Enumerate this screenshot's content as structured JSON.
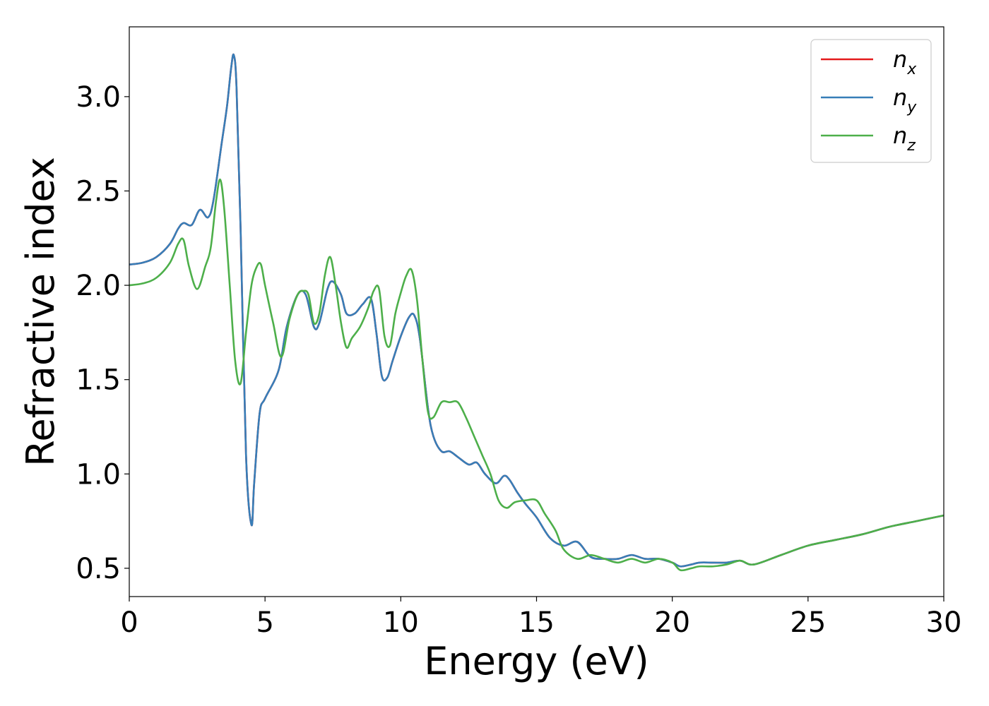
{
  "chart_data": {
    "type": "line",
    "xlabel": "Energy (eV)",
    "ylabel": "Refractive index",
    "xlim": [
      0,
      30
    ],
    "ylim": [
      0.35,
      3.37
    ],
    "xticks": [
      0,
      5,
      10,
      15,
      20,
      25,
      30
    ],
    "xtick_labels": [
      "0",
      "5",
      "10",
      "15",
      "20",
      "25",
      "30"
    ],
    "yticks": [
      0.5,
      1.0,
      1.5,
      2.0,
      2.5,
      3.0
    ],
    "ytick_labels": [
      "0.5",
      "1.0",
      "1.5",
      "2.0",
      "2.5",
      "3.0"
    ],
    "grid": false,
    "legend_position": "top-right",
    "series": [
      {
        "name": "n_x",
        "label_base": "n",
        "label_sub": "x",
        "color": "#e41a1c",
        "x": [
          0,
          0.5,
          1.0,
          1.5,
          1.8,
          2.0,
          2.3,
          2.6,
          2.9,
          3.1,
          3.4,
          3.6,
          3.75,
          3.85,
          3.95,
          4.1,
          4.3,
          4.5,
          4.6,
          4.8,
          5.0,
          5.5,
          5.8,
          6.2,
          6.5,
          6.8,
          7.0,
          7.3,
          7.5,
          7.8,
          8.0,
          8.3,
          8.6,
          8.9,
          9.1,
          9.3,
          9.5,
          9.7,
          10.0,
          10.3,
          10.5,
          10.7,
          11.0,
          11.2,
          11.5,
          11.8,
          12.1,
          12.5,
          12.8,
          13.1,
          13.5,
          13.8,
          14.0,
          14.3,
          14.6,
          15.0,
          15.5,
          16.0,
          16.5,
          17.0,
          17.5,
          18.0,
          18.5,
          19.0,
          19.5,
          20.0,
          20.3,
          20.7,
          21.0,
          21.5,
          22.0,
          22.5,
          23.0,
          24.0,
          25.0,
          26.0,
          27.0,
          28.0,
          29.0,
          30.0
        ],
        "values": [
          2.11,
          2.12,
          2.15,
          2.22,
          2.3,
          2.33,
          2.32,
          2.4,
          2.36,
          2.45,
          2.75,
          2.95,
          3.15,
          3.22,
          3.05,
          2.3,
          1.1,
          0.73,
          0.95,
          1.32,
          1.4,
          1.55,
          1.78,
          1.95,
          1.95,
          1.78,
          1.8,
          1.98,
          2.02,
          1.95,
          1.85,
          1.85,
          1.9,
          1.93,
          1.75,
          1.52,
          1.51,
          1.6,
          1.73,
          1.83,
          1.84,
          1.72,
          1.35,
          1.2,
          1.12,
          1.12,
          1.09,
          1.05,
          1.06,
          1.0,
          0.95,
          0.99,
          0.97,
          0.9,
          0.84,
          0.77,
          0.66,
          0.62,
          0.64,
          0.56,
          0.55,
          0.55,
          0.57,
          0.55,
          0.55,
          0.53,
          0.51,
          0.52,
          0.53,
          0.53,
          0.53,
          0.54,
          0.52,
          0.57,
          0.62,
          0.65,
          0.68,
          0.72,
          0.75,
          0.78
        ]
      },
      {
        "name": "n_y",
        "label_base": "n",
        "label_sub": "y",
        "color": "#377eb8",
        "x": [
          0,
          0.5,
          1.0,
          1.5,
          1.8,
          2.0,
          2.3,
          2.6,
          2.9,
          3.1,
          3.4,
          3.6,
          3.75,
          3.85,
          3.95,
          4.1,
          4.3,
          4.5,
          4.6,
          4.8,
          5.0,
          5.5,
          5.8,
          6.2,
          6.5,
          6.8,
          7.0,
          7.3,
          7.5,
          7.8,
          8.0,
          8.3,
          8.6,
          8.9,
          9.1,
          9.3,
          9.5,
          9.7,
          10.0,
          10.3,
          10.5,
          10.7,
          11.0,
          11.2,
          11.5,
          11.8,
          12.1,
          12.5,
          12.8,
          13.1,
          13.5,
          13.8,
          14.0,
          14.3,
          14.6,
          15.0,
          15.5,
          16.0,
          16.5,
          17.0,
          17.5,
          18.0,
          18.5,
          19.0,
          19.5,
          20.0,
          20.3,
          20.7,
          21.0,
          21.5,
          22.0,
          22.5,
          23.0,
          24.0,
          25.0,
          26.0,
          27.0,
          28.0,
          29.0,
          30.0
        ],
        "values": [
          2.11,
          2.12,
          2.15,
          2.22,
          2.3,
          2.33,
          2.32,
          2.4,
          2.36,
          2.45,
          2.75,
          2.95,
          3.15,
          3.22,
          3.05,
          2.3,
          1.1,
          0.73,
          0.95,
          1.32,
          1.4,
          1.55,
          1.78,
          1.95,
          1.95,
          1.78,
          1.8,
          1.98,
          2.02,
          1.95,
          1.85,
          1.85,
          1.9,
          1.93,
          1.75,
          1.52,
          1.51,
          1.6,
          1.73,
          1.83,
          1.84,
          1.72,
          1.35,
          1.2,
          1.12,
          1.12,
          1.09,
          1.05,
          1.06,
          1.0,
          0.95,
          0.99,
          0.97,
          0.9,
          0.84,
          0.77,
          0.66,
          0.62,
          0.64,
          0.56,
          0.55,
          0.55,
          0.57,
          0.55,
          0.55,
          0.53,
          0.51,
          0.52,
          0.53,
          0.53,
          0.53,
          0.54,
          0.52,
          0.57,
          0.62,
          0.65,
          0.68,
          0.72,
          0.75,
          0.78
        ]
      },
      {
        "name": "n_z",
        "label_base": "n",
        "label_sub": "z",
        "color": "#4daf4a",
        "x": [
          0,
          0.5,
          1.0,
          1.5,
          1.8,
          2.0,
          2.2,
          2.5,
          2.8,
          3.0,
          3.2,
          3.35,
          3.5,
          3.7,
          3.9,
          4.1,
          4.3,
          4.5,
          4.7,
          4.85,
          5.0,
          5.3,
          5.6,
          5.9,
          6.2,
          6.4,
          6.6,
          6.8,
          7.0,
          7.2,
          7.4,
          7.6,
          7.8,
          8.0,
          8.2,
          8.5,
          8.8,
          9.0,
          9.2,
          9.4,
          9.6,
          9.8,
          10.0,
          10.2,
          10.4,
          10.6,
          10.8,
          11.0,
          11.2,
          11.5,
          11.8,
          12.1,
          12.4,
          12.7,
          13.0,
          13.3,
          13.6,
          13.9,
          14.2,
          14.6,
          15.0,
          15.3,
          15.7,
          16.0,
          16.5,
          17.0,
          17.5,
          18.0,
          18.5,
          19.0,
          19.5,
          20.0,
          20.3,
          20.7,
          21.0,
          21.5,
          22.0,
          22.5,
          23.0,
          24.0,
          25.0,
          26.0,
          27.0,
          28.0,
          29.0,
          30.0
        ],
        "values": [
          2.0,
          2.01,
          2.04,
          2.12,
          2.22,
          2.24,
          2.1,
          1.98,
          2.1,
          2.2,
          2.45,
          2.56,
          2.4,
          2.0,
          1.6,
          1.48,
          1.75,
          2.0,
          2.1,
          2.11,
          2.0,
          1.8,
          1.62,
          1.82,
          1.95,
          1.97,
          1.95,
          1.8,
          1.85,
          2.05,
          2.15,
          2.0,
          1.8,
          1.67,
          1.72,
          1.78,
          1.88,
          1.97,
          1.98,
          1.73,
          1.68,
          1.85,
          1.96,
          2.05,
          2.08,
          1.92,
          1.6,
          1.33,
          1.3,
          1.38,
          1.38,
          1.38,
          1.3,
          1.2,
          1.1,
          1.0,
          0.86,
          0.82,
          0.85,
          0.86,
          0.86,
          0.79,
          0.7,
          0.6,
          0.55,
          0.57,
          0.55,
          0.53,
          0.55,
          0.53,
          0.55,
          0.53,
          0.49,
          0.5,
          0.51,
          0.51,
          0.52,
          0.54,
          0.52,
          0.57,
          0.62,
          0.65,
          0.68,
          0.72,
          0.75,
          0.78
        ]
      }
    ]
  }
}
